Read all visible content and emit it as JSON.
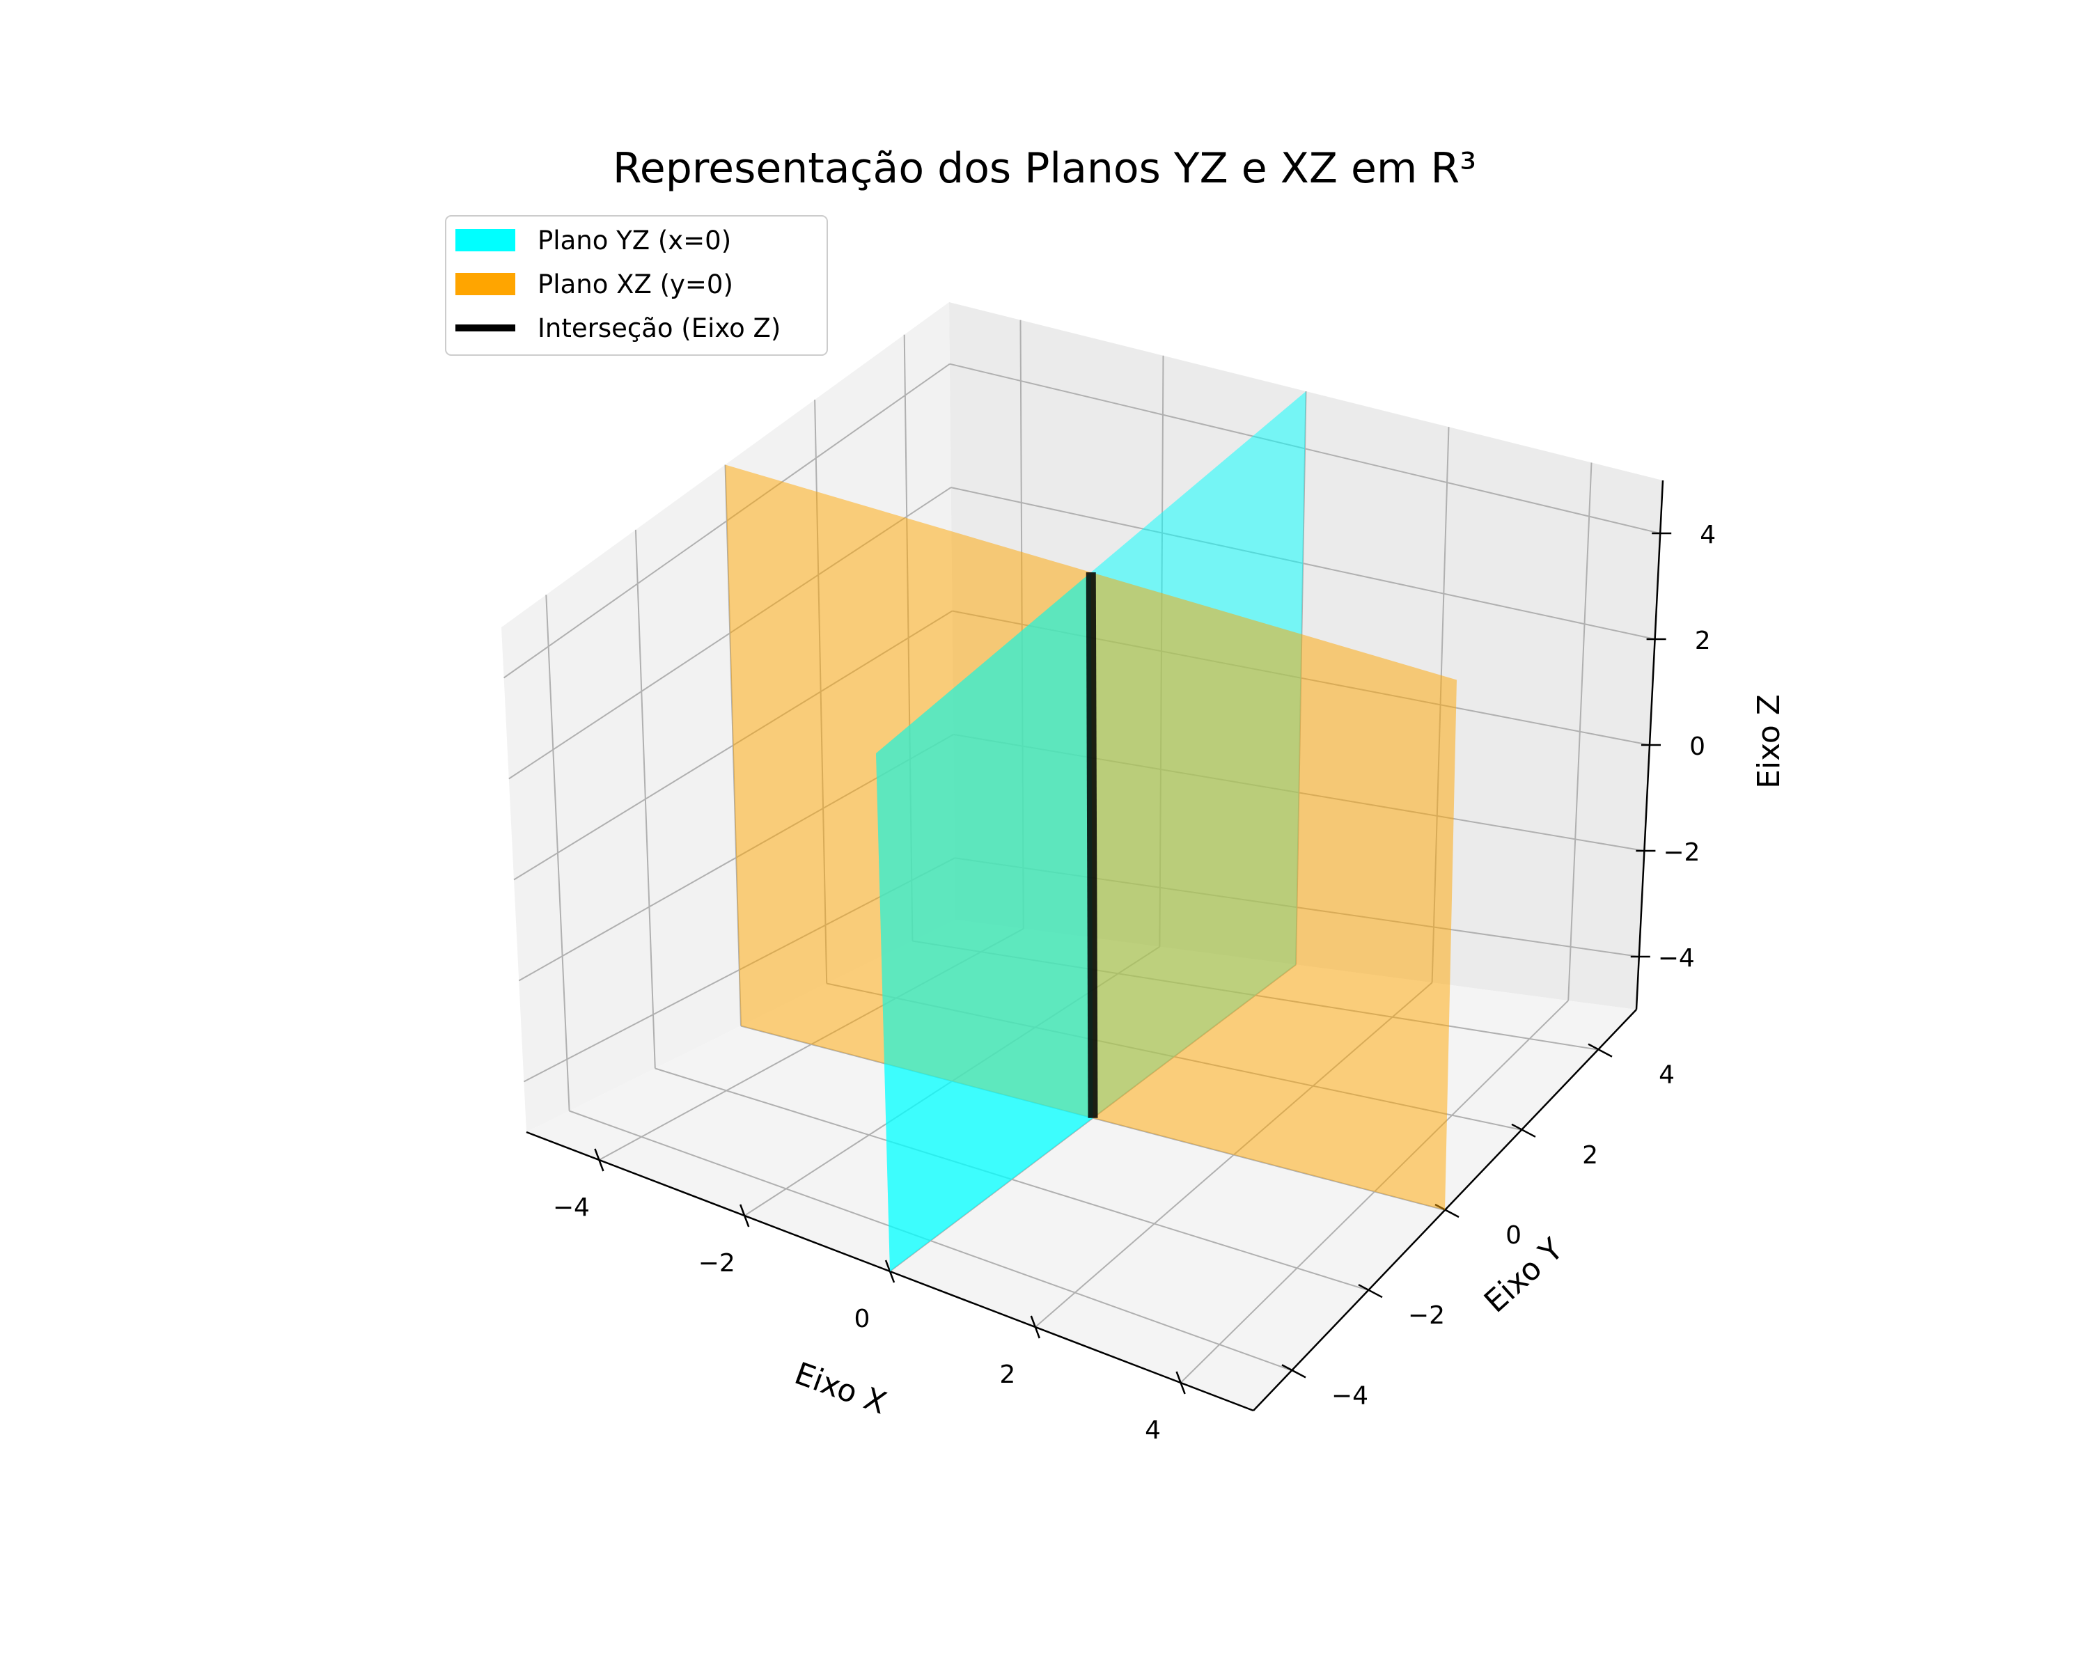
{
  "chart_data": {
    "type": "surface3d",
    "title": "Representação dos Planos YZ e XZ em R³",
    "xlabel": "Eixo X",
    "ylabel": "Eixo Y",
    "zlabel": "Eixo Z",
    "xlim": [
      -5,
      5
    ],
    "ylim": [
      -5,
      5
    ],
    "zlim": [
      -5,
      5
    ],
    "x_ticks": [
      -4,
      -2,
      0,
      2,
      4
    ],
    "y_ticks": [
      -4,
      -2,
      0,
      2,
      4
    ],
    "z_ticks": [
      -4,
      -2,
      0,
      2,
      4
    ],
    "x_tick_labels": [
      "−4",
      "−2",
      "0",
      "2",
      "4"
    ],
    "y_tick_labels": [
      "−4",
      "−2",
      "0",
      "2",
      "4"
    ],
    "z_tick_labels": [
      "−4",
      "−2",
      "0",
      "2",
      "4"
    ],
    "grid": true,
    "legend_position": "upper left",
    "series": [
      {
        "name": "Plano YZ (x=0)",
        "kind": "plane",
        "corners": [
          [
            0,
            -5,
            -5
          ],
          [
            0,
            5,
            -5
          ],
          [
            0,
            5,
            5
          ],
          [
            0,
            -5,
            5
          ]
        ],
        "color": "#00ffff",
        "alpha": 0.5
      },
      {
        "name": "Plano XZ (y=0)",
        "kind": "plane",
        "corners": [
          [
            -5,
            0,
            -5
          ],
          [
            5,
            0,
            -5
          ],
          [
            5,
            0,
            5
          ],
          [
            -5,
            0,
            5
          ]
        ],
        "color": "#ffa500",
        "alpha": 0.5
      },
      {
        "name": "Interseção (Eixo Z)",
        "kind": "line",
        "points": [
          [
            0,
            0,
            -5
          ],
          [
            0,
            0,
            5
          ]
        ],
        "color": "#000000"
      }
    ]
  }
}
